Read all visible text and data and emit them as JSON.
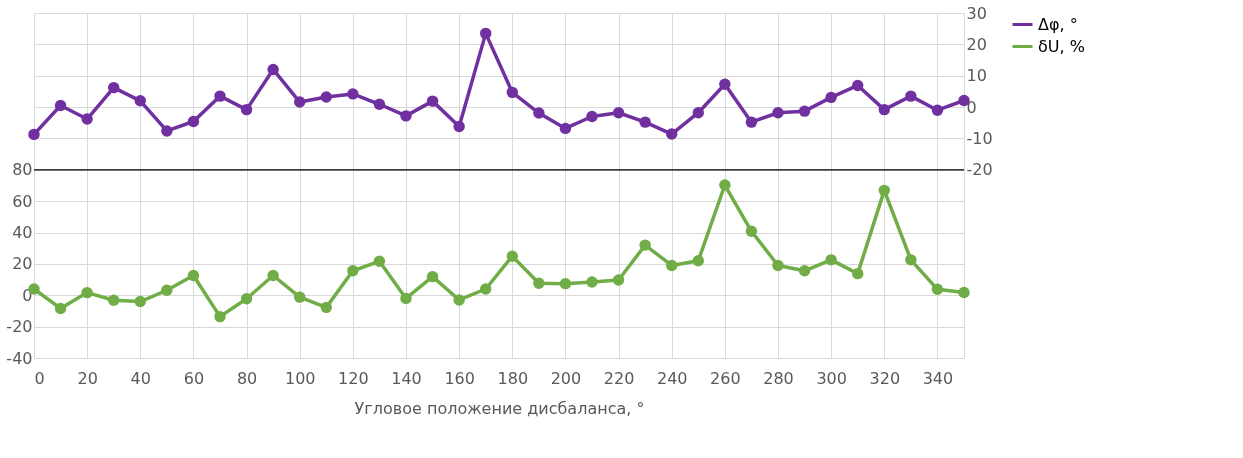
{
  "chart_data": {
    "type": "line",
    "xlabel": "Угловое положение дисбаланса, °",
    "x": [
      0,
      10,
      20,
      30,
      40,
      50,
      60,
      70,
      80,
      90,
      100,
      110,
      120,
      130,
      140,
      150,
      160,
      170,
      180,
      190,
      200,
      210,
      220,
      230,
      240,
      250,
      260,
      270,
      280,
      290,
      300,
      310,
      320,
      330,
      340,
      350
    ],
    "xlim": [
      0,
      350
    ],
    "xticks": [
      0,
      20,
      40,
      60,
      80,
      100,
      120,
      140,
      160,
      180,
      200,
      220,
      240,
      260,
      280,
      300,
      320,
      340
    ],
    "ylim": [
      -40,
      180
    ],
    "yticks": [
      -40,
      -20,
      0,
      20,
      40,
      60,
      80,
      {
        "value": 100,
        "label": null
      },
      {
        "value": 120,
        "label": null
      },
      {
        "value": 140,
        "label": null
      },
      {
        "value": 160,
        "label": null
      },
      {
        "value": 180,
        "label": null
      }
    ],
    "y2lim": [
      -80,
      30
    ],
    "y2ticks": [
      -20,
      -10,
      0,
      10,
      20,
      30
    ],
    "series": [
      {
        "name": "Δφ, °",
        "color": "#7030a0",
        "axis": "y2",
        "values": [
          -8.7,
          0.5,
          -3.8,
          6.2,
          2,
          -7.6,
          -4.6,
          3.5,
          -0.8,
          12,
          1.6,
          3.2,
          4.2,
          0.9,
          -2.8,
          1.9,
          -6.2,
          23.5,
          4.7,
          -1.9,
          -6.8,
          -3,
          -1.8,
          -4.8,
          -8.6,
          -1.8,
          7.3,
          -4.8,
          -1.8,
          -1.3,
          3.1,
          6.9,
          -0.8,
          3.5,
          -1,
          2.1
        ]
      },
      {
        "name": "δU, %",
        "color": "#70ad47",
        "values": [
          4,
          -8.4,
          1.7,
          -3.2,
          -4,
          3.2,
          12.6,
          -13.6,
          -2.2,
          12.6,
          -1.2,
          -7.7,
          15.6,
          21.7,
          -2,
          11.9,
          -3,
          4,
          24.9,
          7.7,
          7.4,
          8.5,
          9.7,
          32,
          19,
          22,
          70.3,
          40.8,
          19,
          15.6,
          22.6,
          13.8,
          66.9,
          22.6,
          3.8,
          1.8
        ]
      }
    ],
    "ref_lines": [
      {
        "axis": "y",
        "value": 80,
        "color": "#000000",
        "line_style": "solid"
      }
    ],
    "grid": true,
    "legend": "right",
    "marker": "circle",
    "line_style": "solid"
  }
}
